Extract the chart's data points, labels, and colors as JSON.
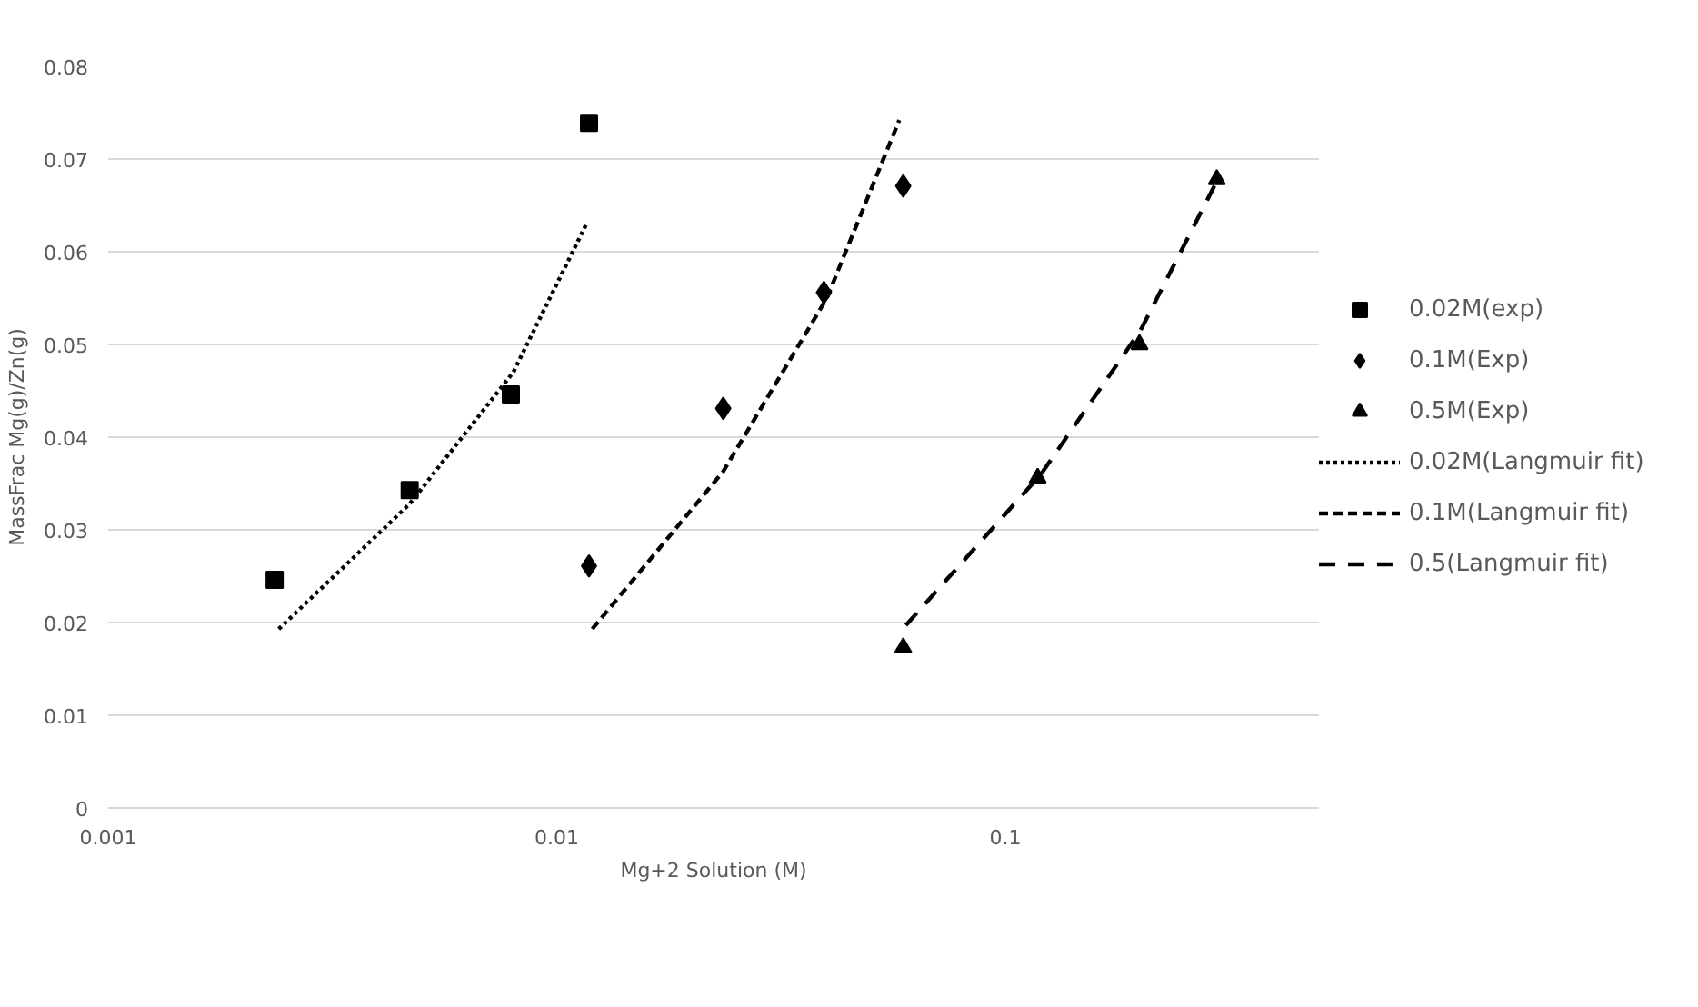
{
  "chart_data": {
    "type": "scatter",
    "xlabel": "Mg+2 Solution (M)",
    "ylabel": "MassFrac Mg(g)/Zn(g)",
    "log": "x",
    "xlim": [
      0.001,
      0.5
    ],
    "xticks": [
      0.001,
      0.01,
      0.1
    ],
    "ylim": [
      0,
      0.08
    ],
    "yticks": [
      0,
      0.01,
      0.02,
      0.03,
      0.04,
      0.05,
      0.06,
      0.07,
      0.08
    ],
    "grid": "y",
    "legend": "right",
    "series": [
      {
        "name": "0.02M(exp)",
        "marker": "square",
        "color": "#000000",
        "x": [
          0.00235,
          0.0047,
          0.0079,
          0.0118
        ],
        "values": [
          0.0246,
          0.0343,
          0.0446,
          0.0739
        ]
      },
      {
        "name": "0.1M(Exp)",
        "marker": "diamond",
        "color": "#000000",
        "x": [
          0.0118,
          0.0235,
          0.0394,
          0.0592
        ],
        "values": [
          0.0261,
          0.0431,
          0.0556,
          0.0671
        ]
      },
      {
        "name": "0.5M(Exp)",
        "marker": "triangle",
        "color": "#000000",
        "x": [
          0.0592,
          0.118,
          0.199,
          0.296
        ],
        "values": [
          0.0173,
          0.0356,
          0.05,
          0.0678
        ]
      },
      {
        "name": "0.02M(Langmuir fit)",
        "type": "line",
        "line_style": "dotted",
        "color": "#000000",
        "x": [
          0.0024,
          0.0047,
          0.008,
          0.0117
        ],
        "values": [
          0.0193,
          0.0328,
          0.047,
          0.0632
        ]
      },
      {
        "name": "0.1M(Langmuir fit)",
        "type": "line",
        "line_style": "dashed",
        "color": "#000000",
        "x": [
          0.012,
          0.0235,
          0.04,
          0.058
        ],
        "values": [
          0.0193,
          0.0363,
          0.055,
          0.0742
        ]
      },
      {
        "name": "0.5(Langmuir fit)",
        "type": "line",
        "line_style": "dashed",
        "color": "#000000",
        "x": [
          0.06,
          0.12,
          0.2,
          0.296
        ],
        "values": [
          0.0197,
          0.036,
          0.0515,
          0.0676
        ]
      }
    ]
  }
}
